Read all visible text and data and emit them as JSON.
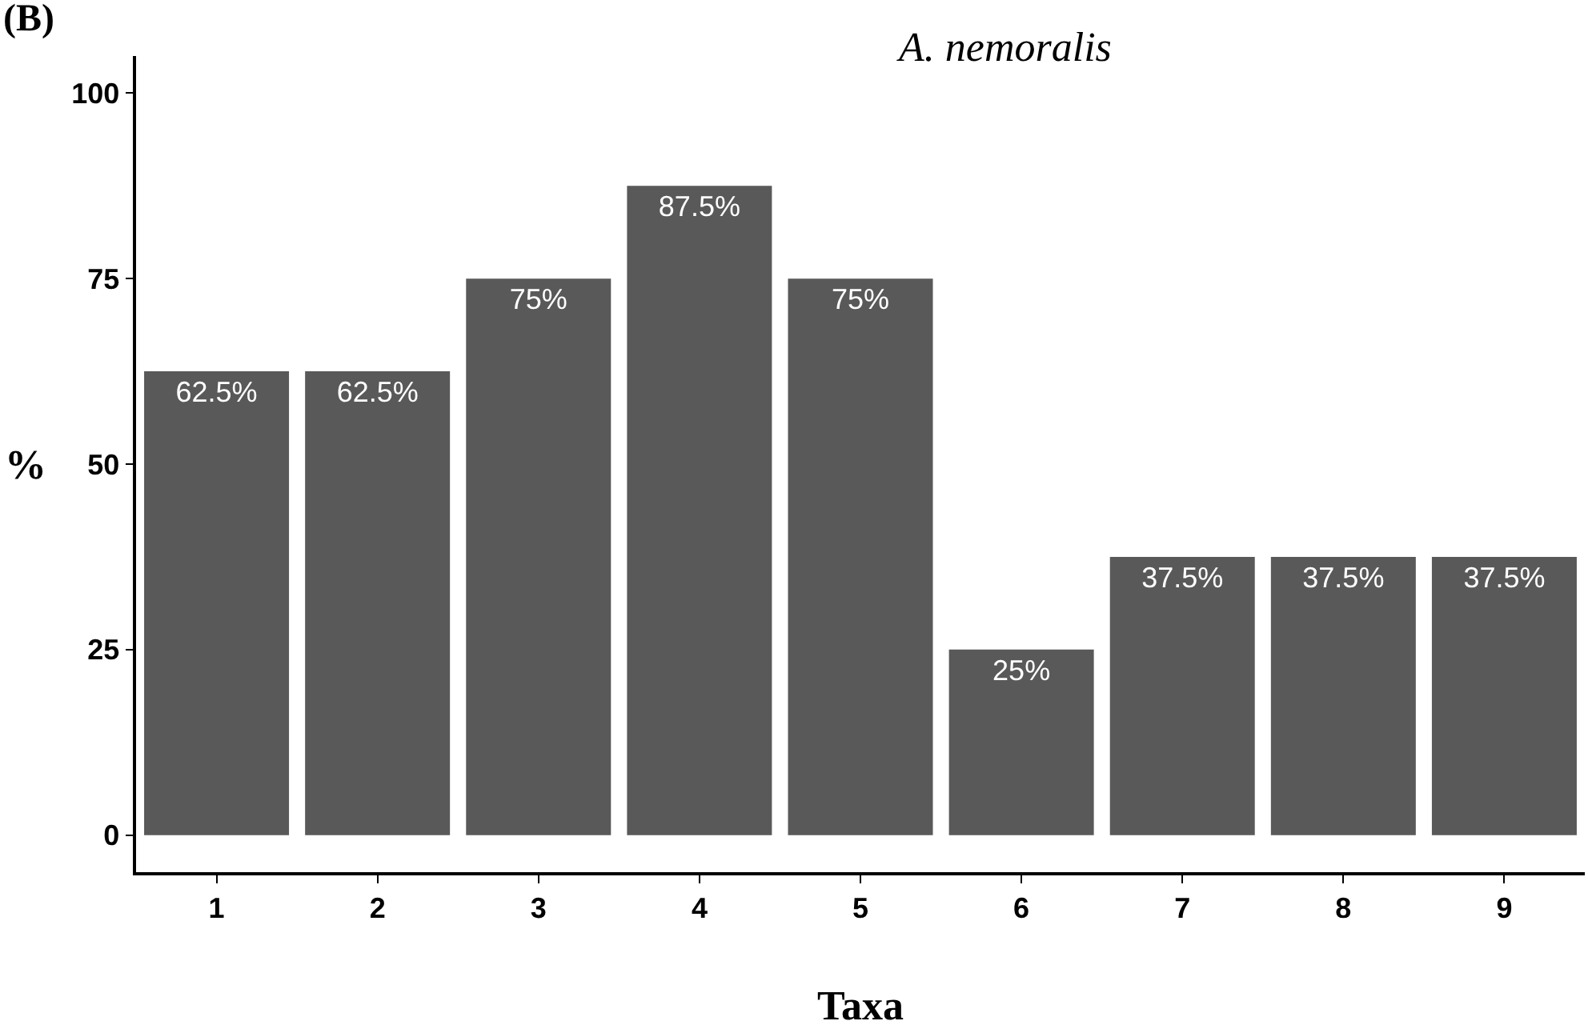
{
  "chart_data": {
    "type": "bar",
    "title": "A. nemoralis",
    "xlabel": "Taxa",
    "ylabel": "%",
    "annotations": [
      "(B)"
    ],
    "categories": [
      "1",
      "2",
      "3",
      "4",
      "5",
      "6",
      "7",
      "8",
      "9"
    ],
    "values": [
      62.5,
      62.5,
      75,
      87.5,
      75,
      25,
      37.5,
      37.5,
      37.5
    ],
    "value_labels": [
      "62.5%",
      "62.5%",
      "75%",
      "87.5%",
      "75%",
      "25%",
      "37.5%",
      "37.5%",
      "37.5%"
    ],
    "color": "#595959",
    "ylim": [
      -5,
      105
    ],
    "yticks": [
      0,
      25,
      50,
      75,
      100
    ],
    "grid": false
  }
}
